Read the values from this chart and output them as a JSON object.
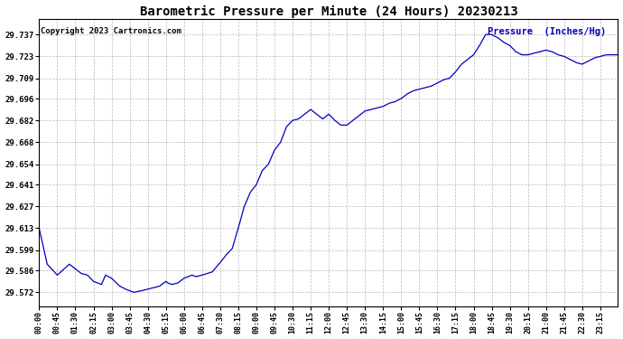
{
  "title": "Barometric Pressure per Minute (24 Hours) 20230213",
  "copyright": "Copyright 2023 Cartronics.com",
  "legend_label": "Pressure  (Inches/Hg)",
  "line_color": "#0000bb",
  "background_color": "#ffffff",
  "grid_color": "#bbbbbb",
  "yticks": [
    29.572,
    29.586,
    29.599,
    29.613,
    29.627,
    29.641,
    29.654,
    29.668,
    29.682,
    29.696,
    29.709,
    29.723,
    29.737
  ],
  "ylim": [
    29.563,
    29.747
  ],
  "x_tick_labels": [
    "00:00",
    "00:45",
    "01:30",
    "02:15",
    "03:00",
    "03:45",
    "04:30",
    "05:15",
    "06:00",
    "06:45",
    "07:30",
    "08:15",
    "09:00",
    "09:45",
    "10:30",
    "11:15",
    "12:00",
    "12:45",
    "13:30",
    "14:15",
    "15:00",
    "15:45",
    "16:30",
    "17:15",
    "18:00",
    "18:45",
    "19:30",
    "20:15",
    "21:00",
    "21:45",
    "22:30",
    "23:15"
  ]
}
